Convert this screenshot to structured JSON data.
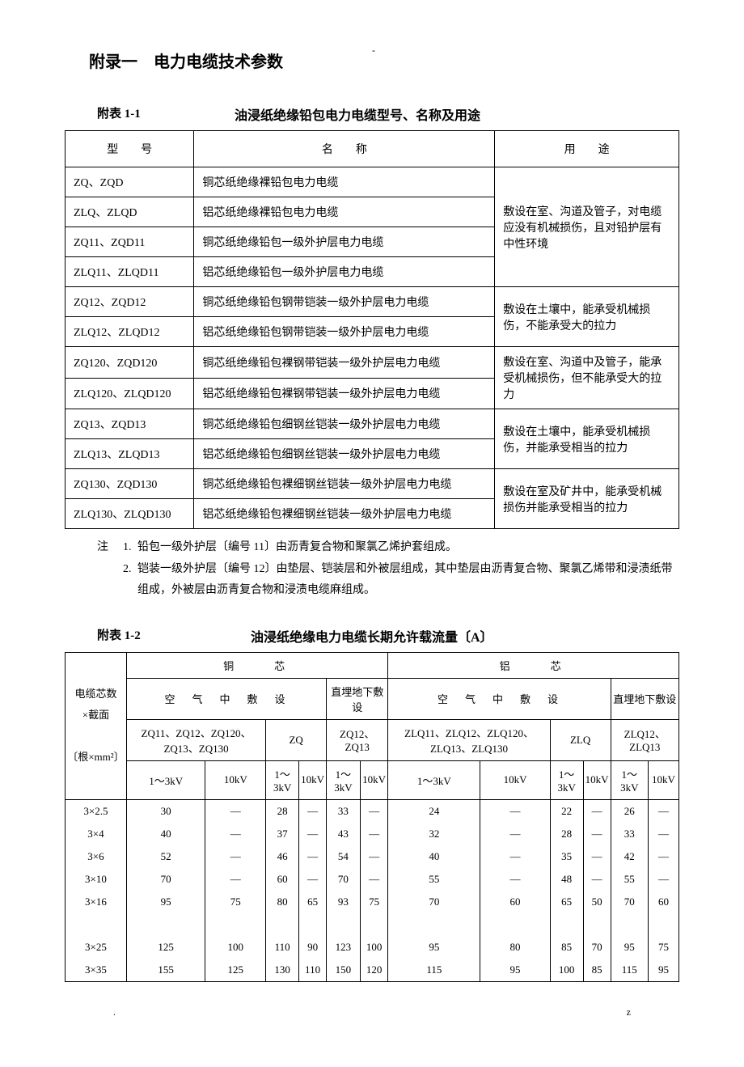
{
  "page": {
    "top_mark": "-",
    "appendix_title": "附录一　电力电缆技术参数",
    "footer_left": ".",
    "footer_right": "z"
  },
  "table1": {
    "number": "附表 1-1",
    "caption": "油浸纸绝缘铅包电力电缆型号、名称及用途",
    "headers": {
      "model": "型　　号",
      "name": "名　　称",
      "use": "用　　途"
    },
    "rows": [
      {
        "model": "ZQ、ZQD",
        "name": "铜芯纸绝缘裸铅包电力电缆"
      },
      {
        "model": "ZLQ、ZLQD",
        "name": "铝芯纸绝缘裸铅包电力电缆"
      },
      {
        "model": "ZQ11、ZQD11",
        "name": "铜芯纸绝缘铅包一级外护层电力电缆"
      },
      {
        "model": "ZLQ11、ZLQD11",
        "name": "铝芯纸绝缘铅包一级外护层电力电缆"
      },
      {
        "model": "ZQ12、ZQD12",
        "name": "铜芯纸绝缘铅包钢带铠装一级外护层电力电缆"
      },
      {
        "model": "ZLQ12、ZLQD12",
        "name": "铝芯纸绝缘铅包钢带铠装一级外护层电力电缆"
      },
      {
        "model": "ZQ120、ZQD120",
        "name": "铜芯纸绝缘铅包裸钢带铠装一级外护层电力电缆"
      },
      {
        "model": "ZLQ120、ZLQD120",
        "name": "铝芯纸绝缘铅包裸钢带铠装一级外护层电力电缆"
      },
      {
        "model": "ZQ13、ZQD13",
        "name": "铜芯纸绝缘铅包细钢丝铠装一级外护层电力电缆"
      },
      {
        "model": "ZLQ13、ZLQD13",
        "name": "铝芯纸绝缘铅包细钢丝铠装一级外护层电力电缆"
      },
      {
        "model": "ZQ130、ZQD130",
        "name": "铜芯纸绝缘铅包裸细钢丝铠装一级外护层电力电缆"
      },
      {
        "model": "ZLQ130、ZLQD130",
        "name": "铝芯纸绝缘铅包裸细钢丝铠装一级外护层电力电缆"
      }
    ],
    "uses": [
      "敷设在室、沟道及管子，对电缆应没有机械损伤，且对铅护层有中性环境",
      "敷设在土壤中，能承受机械损伤，不能承受大的拉力",
      "敷设在室、沟道中及管子，能承受机械损伤，但不能承受大的拉力",
      "敷设在土壤中，能承受机械损伤，并能承受相当的拉力",
      "敷设在室及矿井中，能承受机械损伤并能承受相当的拉力"
    ],
    "notes_label": "注",
    "notes": [
      "铅包一级外护层〔编号 11〕由沥青复合物和聚氯乙烯护套组成。",
      "铠装一级外护层〔编号 12〕由垫层、铠装层和外被层组成，其中垫层由沥青复合物、聚氯乙烯带和浸渍纸带组成，外被层由沥青复合物和浸渍电缆麻组成。"
    ],
    "note_nums": [
      "1.",
      "2."
    ]
  },
  "table2": {
    "number": "附表 1-2",
    "caption": "油浸纸绝缘电力电缆长期允许载流量〔A〕",
    "headers": {
      "rowhead_l1": "电缆芯数",
      "rowhead_l2": "×截面",
      "rowhead_l3": "〔根×mm²〕",
      "copper": "铜　　芯",
      "aluminum": "铝　　芯",
      "air": "空　气　中　敷　设",
      "buried": "直埋地下敷设",
      "cu_air_models": "ZQ11、ZQ12、ZQ120、ZQ13、ZQ130",
      "cu_air_zq": "ZQ",
      "cu_buried": "ZQ12、ZQ13",
      "al_air_models": "ZLQ11、ZLQ12、ZLQ120、ZLQ13、ZLQ130",
      "al_air_zlq": "ZLQ",
      "al_buried": "ZLQ12、ZLQ13",
      "v1_3": "1～3kV",
      "v1_3_split": "1～3kV",
      "v10": "10kV"
    },
    "rows": [
      {
        "size": "3×2.5",
        "cells": [
          "30",
          "—",
          "28",
          "—",
          "33",
          "—",
          "24",
          "—",
          "22",
          "—",
          "26",
          "—"
        ]
      },
      {
        "size": "3×4",
        "cells": [
          "40",
          "—",
          "37",
          "—",
          "43",
          "—",
          "32",
          "—",
          "28",
          "—",
          "33",
          "—"
        ]
      },
      {
        "size": "3×6",
        "cells": [
          "52",
          "—",
          "46",
          "—",
          "54",
          "—",
          "40",
          "—",
          "35",
          "—",
          "42",
          "—"
        ]
      },
      {
        "size": "3×10",
        "cells": [
          "70",
          "—",
          "60",
          "—",
          "70",
          "—",
          "55",
          "—",
          "48",
          "—",
          "55",
          "—"
        ]
      },
      {
        "size": "3×16",
        "cells": [
          "95",
          "75",
          "80",
          "65",
          "93",
          "75",
          "70",
          "60",
          "65",
          "50",
          "70",
          "60"
        ]
      },
      {
        "size": "",
        "cells": [
          "",
          "",
          "",
          "",
          "",
          "",
          "",
          "",
          "",
          "",
          "",
          ""
        ]
      },
      {
        "size": "3×25",
        "cells": [
          "125",
          "100",
          "110",
          "90",
          "123",
          "100",
          "95",
          "80",
          "85",
          "70",
          "95",
          "75"
        ]
      },
      {
        "size": "3×35",
        "cells": [
          "155",
          "125",
          "130",
          "110",
          "150",
          "120",
          "115",
          "95",
          "100",
          "85",
          "115",
          "95"
        ]
      }
    ]
  }
}
